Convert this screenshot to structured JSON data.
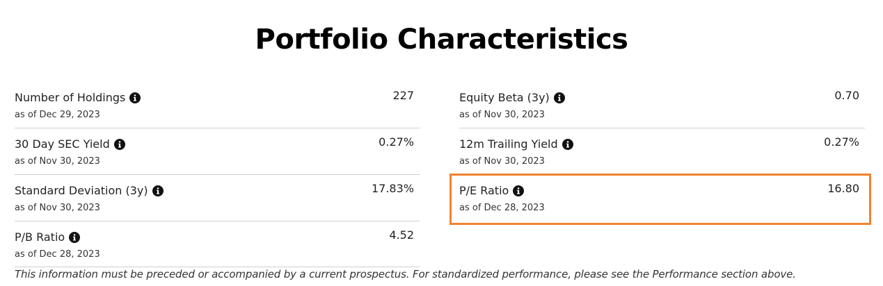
{
  "page": {
    "title": "Portfolio Characteristics",
    "highlight_color": "#f0822e",
    "disclaimer": "This information must be preceded or accompanied by a current prospectus. For standardized performance, please see the Performance section above."
  },
  "left": [
    {
      "label": "Number of Holdings",
      "asof": "as of Dec 29, 2023",
      "value": "227",
      "icon": "info-icon"
    },
    {
      "label": "30 Day SEC Yield",
      "asof": "as of Nov 30, 2023",
      "value": "0.27%",
      "icon": "info-icon"
    },
    {
      "label": "Standard Deviation (3y)",
      "asof": "as of Nov 30, 2023",
      "value": "17.83%",
      "icon": "info-icon"
    },
    {
      "label": "P/B Ratio",
      "asof": "as of Dec 28, 2023",
      "value": "4.52",
      "icon": "info-icon"
    }
  ],
  "right": [
    {
      "label": "Equity Beta (3y)",
      "asof": "as of Nov 30, 2023",
      "value": "0.70",
      "icon": "info-icon"
    },
    {
      "label": "12m Trailing Yield",
      "asof": "as of Nov 30, 2023",
      "value": "0.27%",
      "icon": "info-icon"
    },
    {
      "label": "P/E Ratio",
      "asof": "as of Dec 28, 2023",
      "value": "16.80",
      "icon": "info-icon",
      "highlighted": true
    }
  ]
}
